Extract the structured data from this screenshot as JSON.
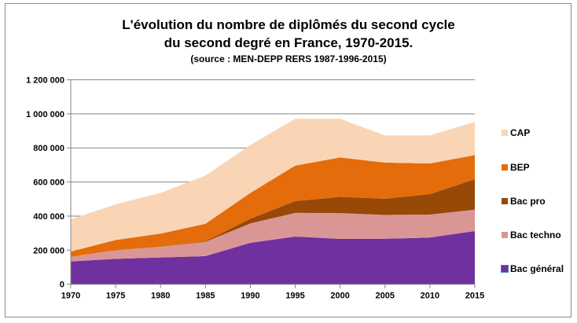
{
  "chart_data": {
    "type": "area",
    "stacked": true,
    "title": "L'évolution du nombre de diplômés du second cycle",
    "title_line2": "du second degré en France, 1970-2015.",
    "subtitle": "(source : MEN-DEPP RERS 1987-1996-2015)",
    "xlabel": "",
    "ylabel": "",
    "x": [
      1970,
      1975,
      1980,
      1985,
      1990,
      1995,
      2000,
      2005,
      2010,
      2015
    ],
    "ylim": [
      0,
      1200000
    ],
    "yticks": [
      0,
      200000,
      400000,
      600000,
      800000,
      1000000,
      1200000
    ],
    "ytick_labels": [
      "0",
      "200 000",
      "400 000",
      "600 000",
      "800 000",
      "1 000 000",
      "1 200 000"
    ],
    "grid": true,
    "legend_position": "right",
    "series": [
      {
        "name": "Bac général",
        "color": "#7030A0",
        "values": [
          134000,
          149000,
          157000,
          165000,
          243000,
          280000,
          266000,
          267000,
          274000,
          312000
        ]
      },
      {
        "name": "Bac techno",
        "color": "#D99694",
        "values": [
          27000,
          51000,
          63000,
          84000,
          114000,
          139000,
          152000,
          140000,
          135000,
          126000
        ]
      },
      {
        "name": "Bac pro",
        "color": "#984807",
        "values": [
          0,
          0,
          0,
          4000,
          27000,
          69000,
          95000,
          95000,
          120000,
          178000
        ]
      },
      {
        "name": "BEP",
        "color": "#E46C0A",
        "values": [
          31000,
          60000,
          77000,
          102000,
          152000,
          208000,
          231000,
          212000,
          180000,
          142000
        ]
      },
      {
        "name": "CAP",
        "color": "#FAD5B5",
        "values": [
          189000,
          209000,
          239000,
          283000,
          281000,
          275000,
          227000,
          159000,
          165000,
          195000
        ]
      }
    ],
    "legend_order": [
      "CAP",
      "BEP",
      "Bac pro",
      "Bac techno",
      "Bac général"
    ]
  }
}
